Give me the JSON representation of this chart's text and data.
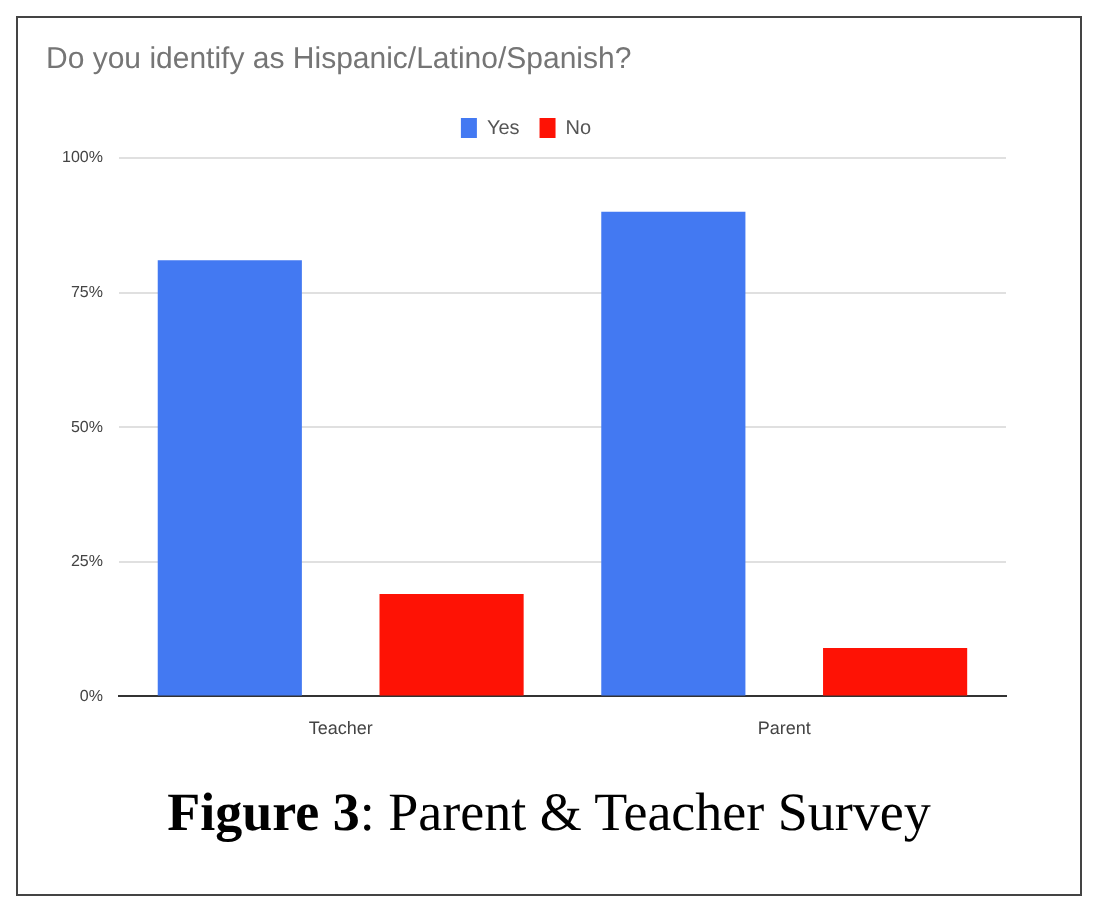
{
  "chart_data": {
    "type": "bar",
    "title": "Do you identify as Hispanic/Latino/Spanish?",
    "categories": [
      "Teacher",
      "Parent"
    ],
    "series": [
      {
        "name": "Yes",
        "color": "#4379f2",
        "values": [
          81,
          90
        ]
      },
      {
        "name": "No",
        "color": "#fe1205",
        "values": [
          19,
          9
        ]
      }
    ],
    "ylim": [
      0,
      100
    ],
    "yticks": [
      {
        "value": 0,
        "label": "0%"
      },
      {
        "value": 25,
        "label": "25%"
      },
      {
        "value": 50,
        "label": "50%"
      },
      {
        "value": 75,
        "label": "75%"
      },
      {
        "value": 100,
        "label": "100%"
      }
    ],
    "grid": "y",
    "legend": "top",
    "annotations": [
      "Figure 3: Parent & Teacher Survey"
    ]
  }
}
